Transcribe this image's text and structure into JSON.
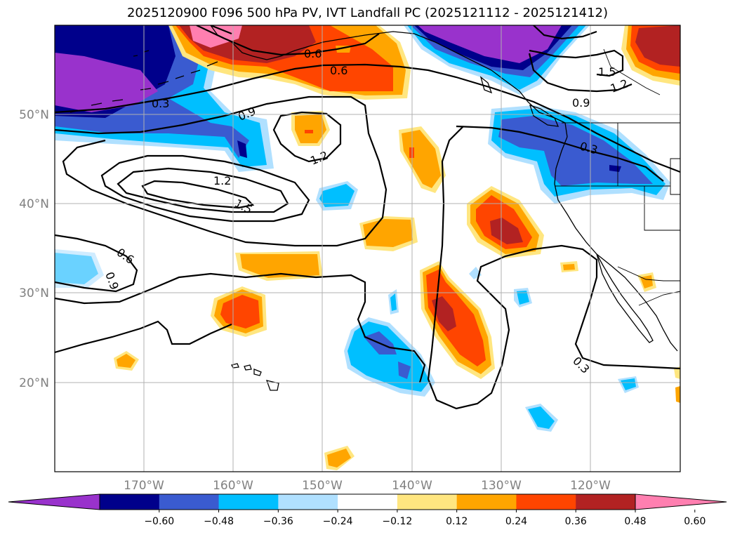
{
  "title": "2025120900 F096 500 hPa PV, IVT Landfall PC (2025121112 - 2025121412)",
  "map": {
    "lat_ticks": [
      "50°N",
      "40°N",
      "30°N",
      "20°N"
    ],
    "lon_ticks": [
      "170°W",
      "160°W",
      "150°W",
      "140°W",
      "130°W",
      "120°W"
    ],
    "lat_range": [
      10,
      60
    ],
    "lon_range": [
      -180,
      -110
    ]
  },
  "colorbar": {
    "tick_labels": [
      "−0.60",
      "−0.48",
      "−0.36",
      "−0.24",
      "−0.12",
      "0.12",
      "0.24",
      "0.36",
      "0.48",
      "0.60"
    ],
    "colors": [
      "#9932cc",
      "#00008b",
      "#3a5bd0",
      "#00bfff",
      "#b0e0ff",
      "#ffffff",
      "#ffe680",
      "#ffa500",
      "#ff4500",
      "#b22222",
      "#ff7fb0"
    ],
    "extend": "both"
  },
  "contour_labels": [
    "0.6",
    "0.6",
    "0.9",
    "1.2",
    "1.2",
    "1.5",
    "0.3",
    "0.6",
    "0.9",
    "0.9",
    "1.2",
    "1.5",
    "0.3",
    "0.3"
  ],
  "colors": {
    "neg_060": "#9932cc",
    "neg_048": "#00008b",
    "neg_036": "#3a5bd0",
    "neg_024": "#00bfff",
    "neg_012": "#b0e0ff",
    "pos_012": "#ffe680",
    "pos_024": "#ffa500",
    "pos_036": "#ff4500",
    "pos_048": "#b22222",
    "pos_060": "#ff7fb0"
  }
}
